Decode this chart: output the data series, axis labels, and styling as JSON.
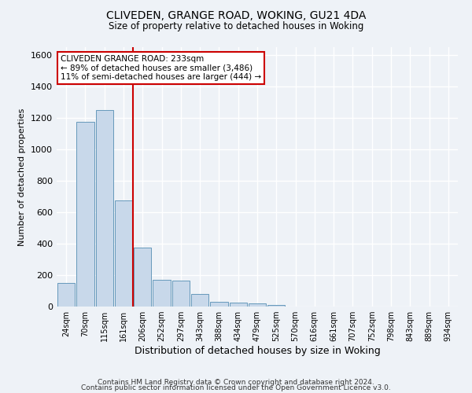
{
  "title1": "CLIVEDEN, GRANGE ROAD, WOKING, GU21 4DA",
  "title2": "Size of property relative to detached houses in Woking",
  "xlabel": "Distribution of detached houses by size in Woking",
  "ylabel": "Number of detached properties",
  "bar_color": "#c8d8ea",
  "bar_edge_color": "#6699bb",
  "categories": [
    "24sqm",
    "70sqm",
    "115sqm",
    "161sqm",
    "206sqm",
    "252sqm",
    "297sqm",
    "343sqm",
    "388sqm",
    "434sqm",
    "479sqm",
    "525sqm",
    "570sqm",
    "616sqm",
    "661sqm",
    "707sqm",
    "752sqm",
    "798sqm",
    "843sqm",
    "889sqm",
    "934sqm"
  ],
  "values": [
    150,
    1175,
    1250,
    675,
    375,
    170,
    165,
    80,
    30,
    25,
    20,
    10,
    0,
    0,
    0,
    0,
    0,
    0,
    0,
    0,
    0
  ],
  "ylim": [
    0,
    1650
  ],
  "yticks": [
    0,
    200,
    400,
    600,
    800,
    1000,
    1200,
    1400,
    1600
  ],
  "marker_color": "#cc0000",
  "marker_bar_index": 4,
  "annotation_text": "CLIVEDEN GRANGE ROAD: 233sqm\n← 89% of detached houses are smaller (3,486)\n11% of semi-detached houses are larger (444) →",
  "annotation_box_color": "#ffffff",
  "annotation_box_edge": "#cc0000",
  "footer1": "Contains HM Land Registry data © Crown copyright and database right 2024.",
  "footer2": "Contains public sector information licensed under the Open Government Licence v3.0.",
  "background_color": "#eef2f7",
  "grid_color": "#ffffff",
  "plot_bg_color": "#eef2f7"
}
